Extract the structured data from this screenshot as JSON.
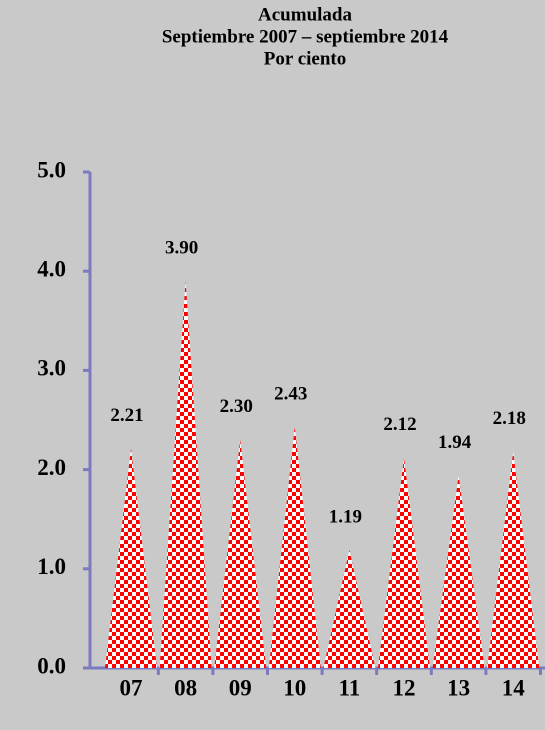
{
  "chart_data": {
    "type": "cone",
    "title_lines": [
      "Acumulada",
      "Septiembre 2007 – septiembre 2014",
      "Por ciento"
    ],
    "categories": [
      "07",
      "08",
      "09",
      "10",
      "11",
      "12",
      "13",
      "14"
    ],
    "values": [
      2.21,
      3.9,
      2.3,
      2.43,
      1.19,
      2.12,
      1.94,
      2.18
    ],
    "value_labels": [
      "2.21",
      "3.90",
      "2.30",
      "2.43",
      "1.19",
      "2.12",
      "1.94",
      "2.18"
    ],
    "color": "#ff0000",
    "ylim": [
      0,
      5
    ],
    "yticks": [
      {
        "value": 0,
        "label": "0.0"
      },
      {
        "value": 1,
        "label": "1.0"
      },
      {
        "value": 2,
        "label": "2.0"
      },
      {
        "value": 3,
        "label": "3.0"
      },
      {
        "value": 4,
        "label": "4.0"
      },
      {
        "value": 5,
        "label": "5.0"
      }
    ]
  }
}
